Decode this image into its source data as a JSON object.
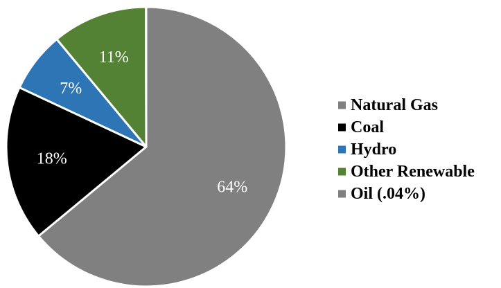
{
  "chart_data": {
    "type": "pie",
    "title": "",
    "slices": [
      {
        "label": "Natural Gas",
        "value": 64,
        "display": "64%",
        "color": "#808080",
        "label_color": "#ffffff"
      },
      {
        "label": "Coal",
        "value": 18,
        "display": "18%",
        "color": "#000000",
        "label_color": "#ffffff"
      },
      {
        "label": "Hydro",
        "value": 7,
        "display": "7%",
        "color": "#2e75b6",
        "label_color": "#ffffff"
      },
      {
        "label": "Other Renewable",
        "value": 11,
        "display": "11%",
        "color": "#548235",
        "label_color": "#ffffff"
      },
      {
        "label": "Oil (.04%)",
        "value": 0.04,
        "display": "",
        "color": "#808080",
        "label_color": "#ffffff"
      }
    ],
    "legend": {
      "placement": "right",
      "entries": [
        "Natural Gas",
        "Coal",
        "Hydro",
        "Other Renewable",
        "Oil (.04%)"
      ]
    },
    "start_angle": "12 o'clock, clockwise",
    "border_color": "#ffffff"
  }
}
